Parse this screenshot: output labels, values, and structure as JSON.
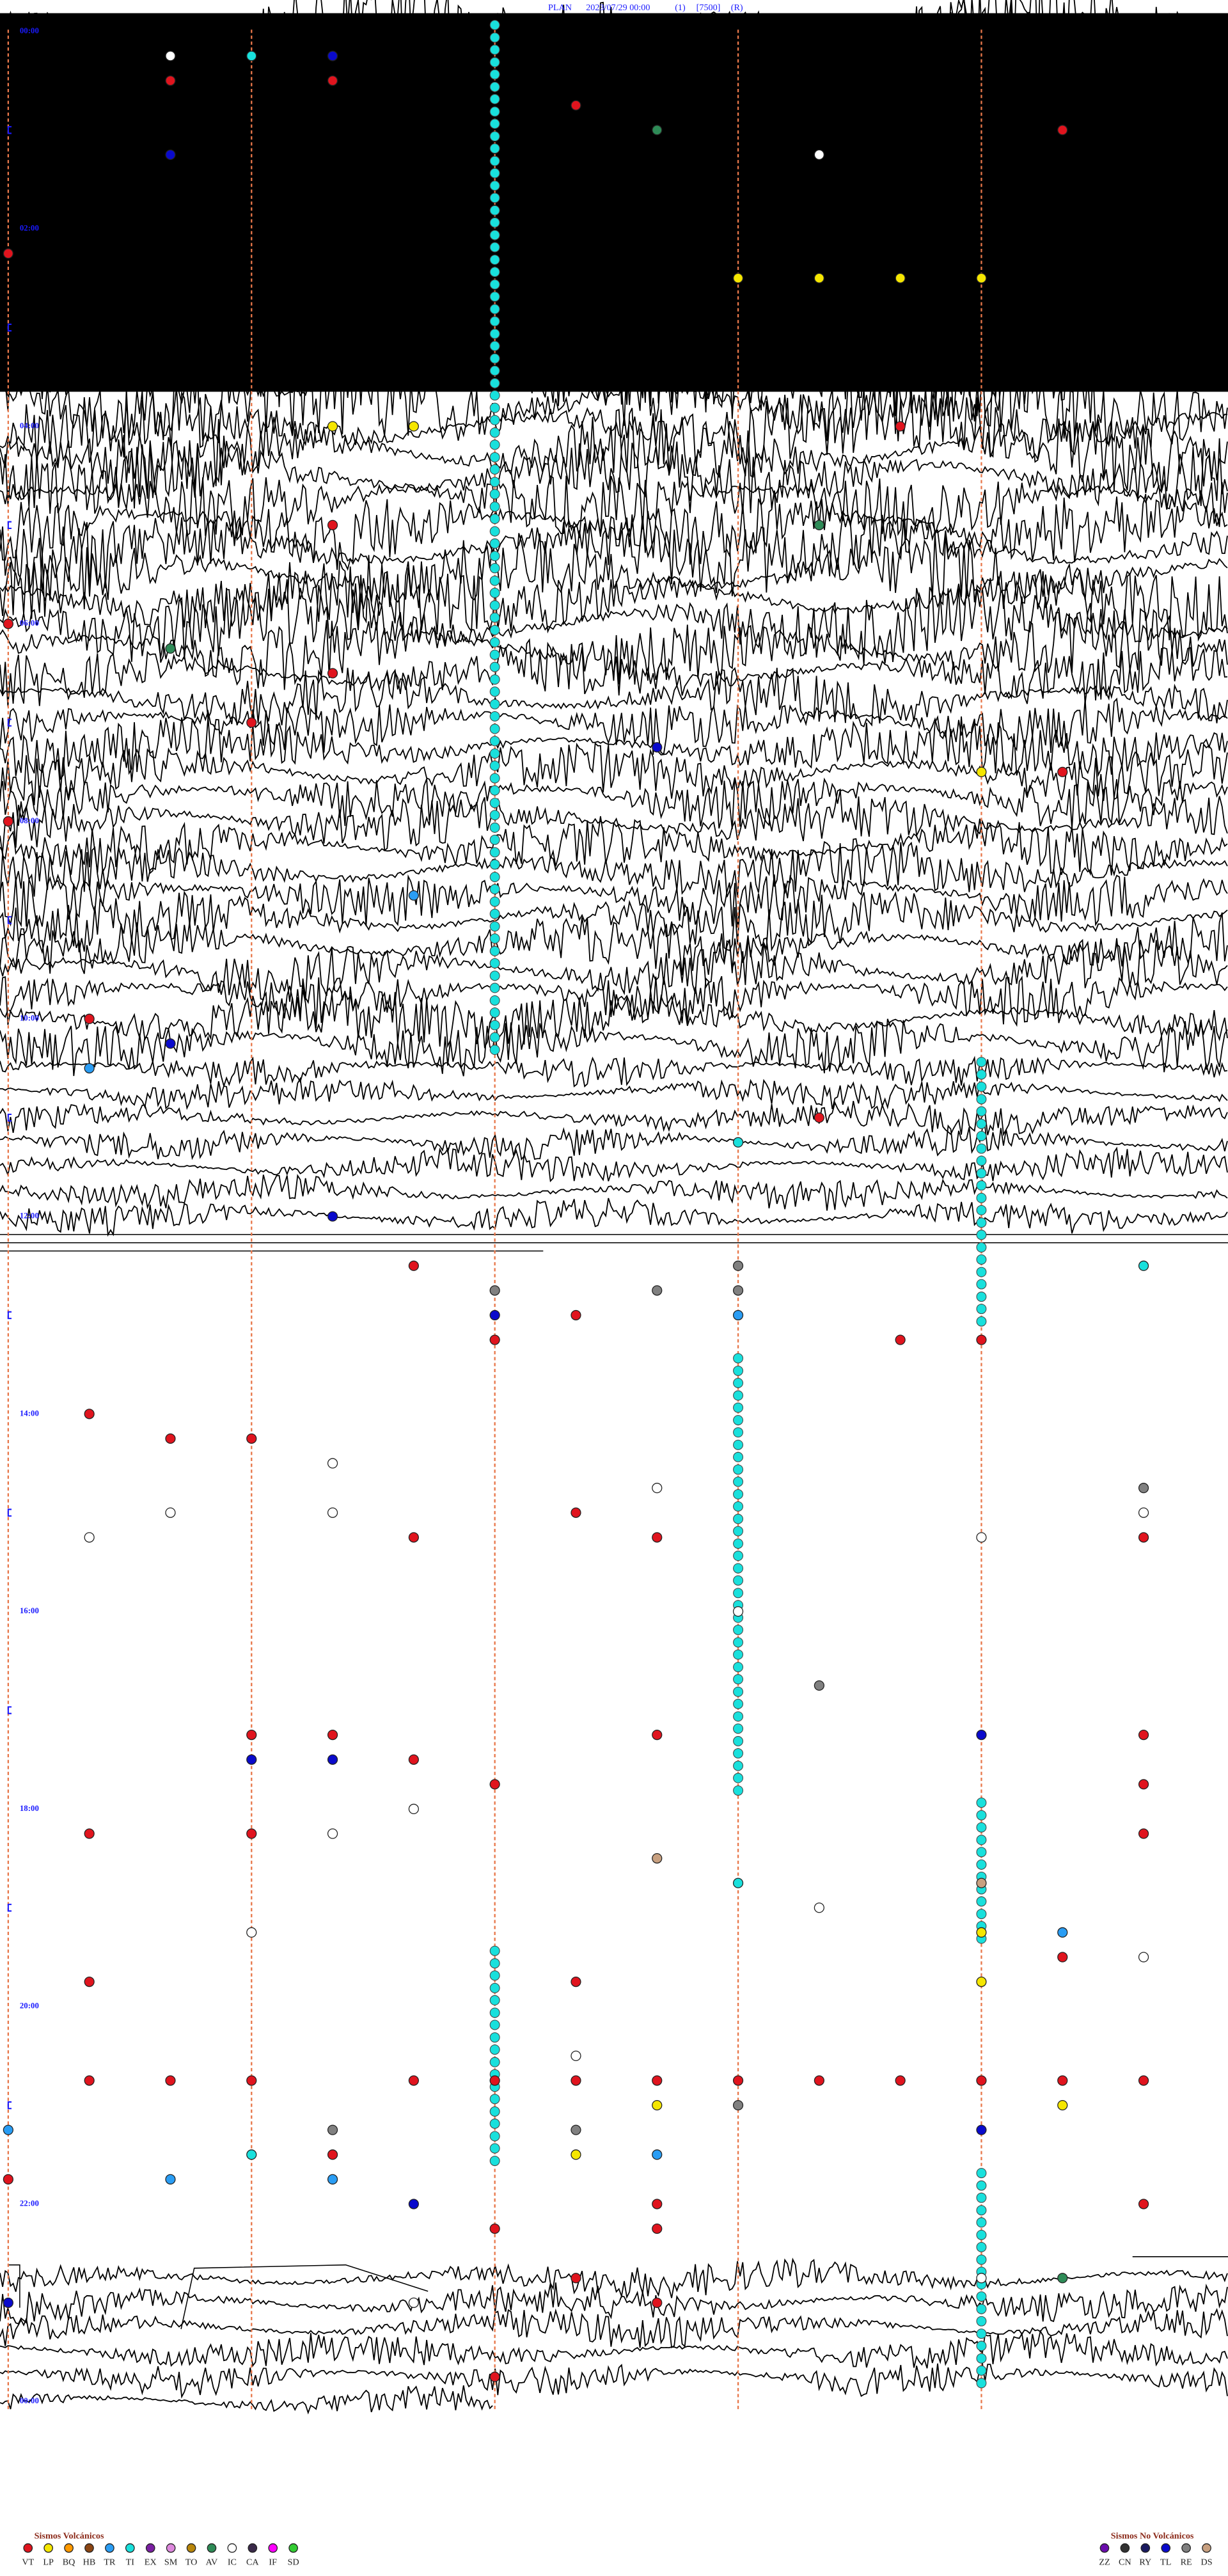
{
  "header": {
    "station": "PLAN",
    "datetime": "2023/07/29 00:00",
    "channel": "(1)",
    "scale": "[7500]",
    "mode": "(R)"
  },
  "hour_labels": [
    "00:00",
    "02:00",
    "04:00",
    "06:00",
    "08:00",
    "10:00",
    "12:00",
    "14:00",
    "16:00",
    "18:00",
    "20:00",
    "22:00",
    "00:00"
  ],
  "swarms": [
    {
      "type": "TI",
      "from": "00:06",
      "to": "10:26",
      "minute": 6
    },
    {
      "type": "TI",
      "from": "10:36",
      "to": "13:00",
      "minute": 12
    },
    {
      "type": "TI",
      "from": "13:30",
      "to": "17:56",
      "minute": 9
    },
    {
      "type": "TI",
      "from": "18:00",
      "to": "19:21",
      "minute": 12
    },
    {
      "type": "TI",
      "from": "19:30",
      "to": "21:30",
      "minute": 6
    },
    {
      "type": "TI",
      "from": "21:51",
      "to": "23:59",
      "minute": 12
    }
  ],
  "events": [
    {
      "type": "VT",
      "time": "00:32"
    },
    {
      "type": "IC",
      "time": "00:17"
    },
    {
      "type": "TI",
      "time": "00:18"
    },
    {
      "type": "TL",
      "time": "00:19"
    },
    {
      "type": "VT",
      "time": "00:34"
    },
    {
      "type": "VT",
      "time": "00:52"
    },
    {
      "type": "AV",
      "time": "01:08"
    },
    {
      "type": "TL",
      "time": "01:17"
    },
    {
      "type": "IC",
      "time": "01:25"
    },
    {
      "type": "VT",
      "time": "01:13"
    },
    {
      "type": "VT",
      "time": "02:15"
    },
    {
      "type": "LP",
      "time": "02:39"
    },
    {
      "type": "LP",
      "time": "02:40"
    },
    {
      "type": "LP",
      "time": "02:41"
    },
    {
      "type": "LP",
      "time": "02:42"
    },
    {
      "type": "LP",
      "time": "04:04"
    },
    {
      "type": "LP",
      "time": "04:05"
    },
    {
      "type": "VT",
      "time": "04:11"
    },
    {
      "type": "VT",
      "time": "05:04"
    },
    {
      "type": "AV",
      "time": "05:10"
    },
    {
      "type": "VT",
      "time": "06:00"
    },
    {
      "type": "AV",
      "time": "06:17"
    },
    {
      "type": "VT",
      "time": "06:34"
    },
    {
      "type": "VT",
      "time": "07:03"
    },
    {
      "type": "TL",
      "time": "07:23"
    },
    {
      "type": "VT",
      "time": "07:43"
    },
    {
      "type": "LP",
      "time": "07:42"
    },
    {
      "type": "VT",
      "time": "08:00"
    },
    {
      "type": "TR",
      "time": "08:50"
    },
    {
      "type": "VT",
      "time": "10:01"
    },
    {
      "type": "TL",
      "time": "10:17"
    },
    {
      "type": "TR",
      "time": "10:31"
    },
    {
      "type": "VT",
      "time": "11:10"
    },
    {
      "type": "TI",
      "time": "11:24"
    },
    {
      "type": "TL",
      "time": "12:04"
    },
    {
      "type": "VT",
      "time": "12:35"
    },
    {
      "type": "RE",
      "time": "12:51"
    },
    {
      "type": "TL",
      "time": "13:06"
    },
    {
      "type": "VT",
      "time": "13:21"
    },
    {
      "type": "VT",
      "time": "13:07"
    },
    {
      "type": "RE",
      "time": "12:53"
    },
    {
      "type": "RE",
      "time": "12:54"
    },
    {
      "type": "RE",
      "time": "12:39"
    },
    {
      "type": "TR",
      "time": "13:09"
    },
    {
      "type": "VT",
      "time": "13:26"
    },
    {
      "type": "VT",
      "time": "13:27"
    },
    {
      "type": "TI",
      "time": "12:44"
    },
    {
      "type": "VT",
      "time": "14:01"
    },
    {
      "type": "VT",
      "time": "14:17"
    },
    {
      "type": "VT",
      "time": "14:18"
    },
    {
      "type": "IC",
      "time": "14:34"
    },
    {
      "type": "IC",
      "time": "15:04"
    },
    {
      "type": "IC",
      "time": "15:16"
    },
    {
      "type": "IC",
      "time": "15:02"
    },
    {
      "type": "VT",
      "time": "15:20"
    },
    {
      "type": "VT",
      "time": "15:07"
    },
    {
      "type": "IC",
      "time": "14:53"
    },
    {
      "type": "VT",
      "time": "15:23"
    },
    {
      "type": "IC",
      "time": "15:27"
    },
    {
      "type": "RE",
      "time": "14:59"
    },
    {
      "type": "VT",
      "time": "15:29"
    },
    {
      "type": "IC",
      "time": "15:14"
    },
    {
      "type": "IC",
      "time": "16:09"
    },
    {
      "type": "RE",
      "time": "16:55"
    },
    {
      "type": "VT",
      "time": "17:18"
    },
    {
      "type": "TL",
      "time": "17:33"
    },
    {
      "type": "TL",
      "time": "17:34"
    },
    {
      "type": "VT",
      "time": "17:35"
    },
    {
      "type": "VT",
      "time": "17:19"
    },
    {
      "type": "VT",
      "time": "17:51"
    },
    {
      "type": "VT",
      "time": "17:23"
    },
    {
      "type": "TL",
      "time": "17:27"
    },
    {
      "type": "VT",
      "time": "17:29"
    },
    {
      "type": "VT",
      "time": "17:59"
    },
    {
      "type": "VT",
      "time": "18:29"
    },
    {
      "type": "VT",
      "time": "18:16"
    },
    {
      "type": "IC",
      "time": "18:19"
    },
    {
      "type": "IC",
      "time": "18:05"
    },
    {
      "type": "VT",
      "time": "18:18"
    },
    {
      "type": "DS",
      "time": "18:38"
    },
    {
      "type": "DS",
      "time": "18:57"
    },
    {
      "type": "IC",
      "time": "19:18"
    },
    {
      "type": "IC",
      "time": "19:10"
    },
    {
      "type": "TI",
      "time": "18:54"
    },
    {
      "type": "TR",
      "time": "19:28"
    },
    {
      "type": "VT",
      "time": "19:43"
    },
    {
      "type": "LP",
      "time": "19:27"
    },
    {
      "type": "LP",
      "time": "19:57"
    },
    {
      "type": "IC",
      "time": "19:44"
    },
    {
      "type": "VT",
      "time": "19:46"
    },
    {
      "type": "VT",
      "time": "19:52"
    },
    {
      "type": "IC",
      "time": "20:37"
    },
    {
      "type": "VT",
      "time": "20:46"
    },
    {
      "type": "VT",
      "time": "20:47"
    },
    {
      "type": "VT",
      "time": "20:48"
    },
    {
      "type": "VT",
      "time": "20:50"
    },
    {
      "type": "VT",
      "time": "20:51"
    },
    {
      "type": "VT",
      "time": "20:52"
    },
    {
      "type": "VT",
      "time": "20:53"
    },
    {
      "type": "VT",
      "time": "20:54"
    },
    {
      "type": "VT",
      "time": "20:55"
    },
    {
      "type": "VT",
      "time": "20:56"
    },
    {
      "type": "VT",
      "time": "20:57"
    },
    {
      "type": "VT",
      "time": "20:58"
    },
    {
      "type": "VT",
      "time": "20:59"
    },
    {
      "type": "RE",
      "time": "21:09"
    },
    {
      "type": "TR",
      "time": "21:15"
    },
    {
      "type": "LP",
      "time": "21:08"
    },
    {
      "type": "LP",
      "time": "21:13"
    },
    {
      "type": "TL",
      "time": "21:27"
    },
    {
      "type": "RE",
      "time": "21:19"
    },
    {
      "type": "RE",
      "time": "21:22"
    },
    {
      "type": "VT",
      "time": "21:45"
    },
    {
      "type": "TR",
      "time": "21:47"
    },
    {
      "type": "TI",
      "time": "21:33"
    },
    {
      "type": "VT",
      "time": "21:34"
    },
    {
      "type": "TR",
      "time": "21:49"
    },
    {
      "type": "LP",
      "time": "21:37"
    },
    {
      "type": "TR",
      "time": "21:38"
    },
    {
      "type": "TL",
      "time": "22:05"
    },
    {
      "type": "VT",
      "time": "22:08"
    },
    {
      "type": "VT",
      "time": "22:23"
    },
    {
      "type": "VT",
      "time": "22:14"
    },
    {
      "type": "VT",
      "time": "22:21"
    },
    {
      "type": "VT",
      "time": "22:52"
    },
    {
      "type": "TL",
      "time": "23:00"
    },
    {
      "type": "IC",
      "time": "23:05"
    },
    {
      "type": "VT",
      "time": "23:08"
    },
    {
      "type": "IC",
      "time": "22:57"
    },
    {
      "type": "AV",
      "time": "22:58"
    },
    {
      "type": "VT",
      "time": "23:51"
    }
  ],
  "legend": {
    "volcanic": {
      "title": "Sismos Volcánicos",
      "items": [
        {
          "code": "VT",
          "color": "#e0141e"
        },
        {
          "code": "LP",
          "color": "#f5e600"
        },
        {
          "code": "BQ",
          "color": "#ff9900"
        },
        {
          "code": "HB",
          "color": "#8b4513"
        },
        {
          "code": "TR",
          "color": "#2a9df4"
        },
        {
          "code": "TI",
          "color": "#19e0dc"
        },
        {
          "code": "EX",
          "color": "#7a1fa2"
        },
        {
          "code": "SM",
          "color": "#dd88dd"
        },
        {
          "code": "TO",
          "color": "#b8860b"
        },
        {
          "code": "AV",
          "color": "#2e8b57"
        },
        {
          "code": "IC",
          "color": "#ffffff"
        },
        {
          "code": "CA",
          "color": "#3a2a4a"
        },
        {
          "code": "IF",
          "color": "#ff00ff"
        },
        {
          "code": "SD",
          "color": "#33cc33"
        }
      ]
    },
    "non_volcanic": {
      "title": "Sismos No Volcánicos",
      "items": [
        {
          "code": "ZZ",
          "color": "#6a0dad"
        },
        {
          "code": "CN",
          "color": "#333333"
        },
        {
          "code": "RY",
          "color": "#1a1a60"
        },
        {
          "code": "TL",
          "color": "#0a0acc"
        },
        {
          "code": "RE",
          "color": "#808080"
        },
        {
          "code": "DS",
          "color": "#c8a080"
        }
      ]
    }
  }
}
